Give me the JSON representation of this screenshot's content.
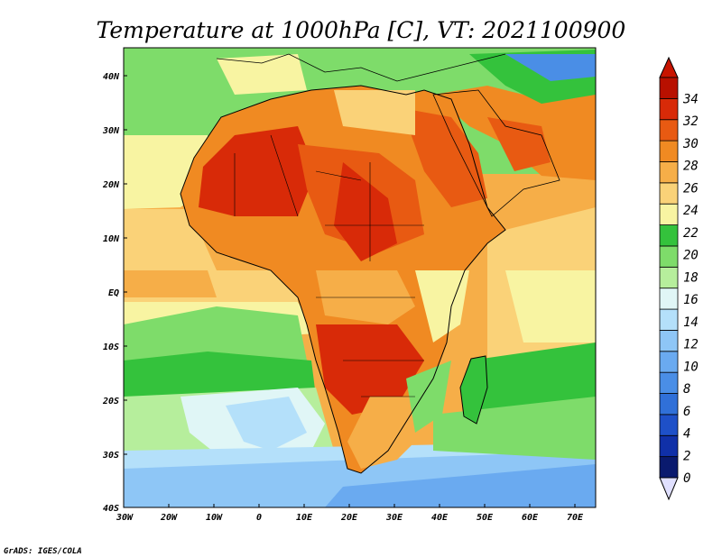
{
  "title": "Temperature at 1000hPa [C], VT: 2021100900",
  "credit": "GrADS: IGES/COLA",
  "map": {
    "lat_ticks": [
      "40N",
      "30N",
      "20N",
      "10N",
      "EQ",
      "10S",
      "20S",
      "30S",
      "40S"
    ],
    "lon_ticks": [
      "30W",
      "20W",
      "10W",
      "0",
      "10E",
      "20E",
      "30E",
      "40E",
      "50E",
      "60E",
      "70E"
    ],
    "lat_range": [
      -40,
      45
    ],
    "lon_range": [
      -30,
      75
    ],
    "projection": "latitude-longitude"
  },
  "colorbar": {
    "unit": "C",
    "levels": [
      "0",
      "2",
      "4",
      "6",
      "8",
      "10",
      "12",
      "14",
      "16",
      "18",
      "20",
      "22",
      "24",
      "26",
      "28",
      "30",
      "32",
      "34"
    ],
    "colors": [
      "#0a1a6e",
      "#1030a8",
      "#1e50c8",
      "#3070d8",
      "#4a8ee6",
      "#6aaaf0",
      "#8ec6f6",
      "#b4e0fa",
      "#e0f6f6",
      "#b6ee9c",
      "#7edc6a",
      "#34c23c",
      "#f8f4a2",
      "#fad278",
      "#f6ae48",
      "#f08a22",
      "#e85a12",
      "#d82a08",
      "#b81000"
    ],
    "under_color": "#e0e0ff",
    "over_color": "#c81400"
  }
}
